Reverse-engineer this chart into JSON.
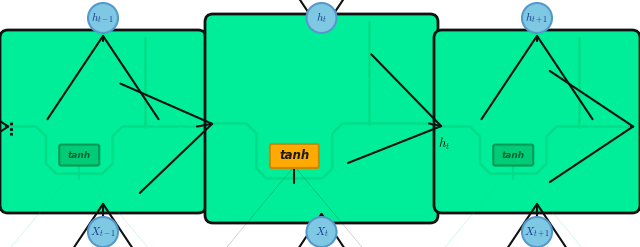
{
  "bg_color": "#ffffff",
  "cell_color": "#00ee99",
  "cell_border_color": "#111111",
  "inner_path_color": "#00dd88",
  "tanh_orange": "#ffaa00",
  "tanh_orange_border": "#cc8800",
  "tanh_green_color": "#00dd88",
  "tanh_green_border": "#009955",
  "tanh_green_text": "#007744",
  "arrow_color": "#111111",
  "circle_color": "#7ec8e3",
  "circle_edge": "#5599cc",
  "circle_text_color": "#1a3a8c",
  "cells": [
    {
      "id": 0,
      "label_h": "$h_{t-1}$",
      "label_x": "$X_{t-1}$"
    },
    {
      "id": 1,
      "label_h": "$h_t$",
      "label_x": "$X_t$"
    },
    {
      "id": 2,
      "label_h": "$h_{t+1}$",
      "label_x": "$X_{t+1}$"
    }
  ],
  "figsize": [
    6.4,
    2.47
  ],
  "dpi": 100
}
